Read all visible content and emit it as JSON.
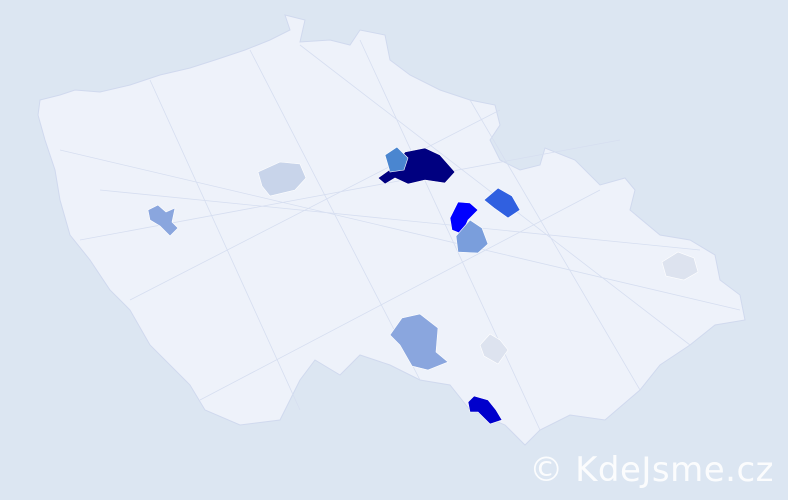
{
  "map": {
    "country_fill": "#eef2fa",
    "border_color": "#d0d9ee",
    "background": "#dce6f2",
    "highlighted_regions": [
      {
        "id": "r1",
        "color": "#000080",
        "level": "highest"
      },
      {
        "id": "r2",
        "color": "#4a86d0",
        "level": "medium"
      },
      {
        "id": "r3",
        "color": "#3060e0",
        "level": "high"
      },
      {
        "id": "r4",
        "color": "#0000ff",
        "level": "high"
      },
      {
        "id": "r5",
        "color": "#7a9edc",
        "level": "medium"
      },
      {
        "id": "r6",
        "color": "#c8d4ea",
        "level": "low"
      },
      {
        "id": "r7",
        "color": "#8aa6de",
        "level": "medium-low"
      },
      {
        "id": "r8",
        "color": "#8aa6de",
        "level": "medium-low"
      },
      {
        "id": "r9",
        "color": "#dde3ef",
        "level": "lowest"
      },
      {
        "id": "r10",
        "color": "#dde3ef",
        "level": "lowest"
      },
      {
        "id": "r11",
        "color": "#0000cc",
        "level": "high"
      }
    ]
  },
  "watermark": {
    "text": "© KdeJsme.cz"
  }
}
